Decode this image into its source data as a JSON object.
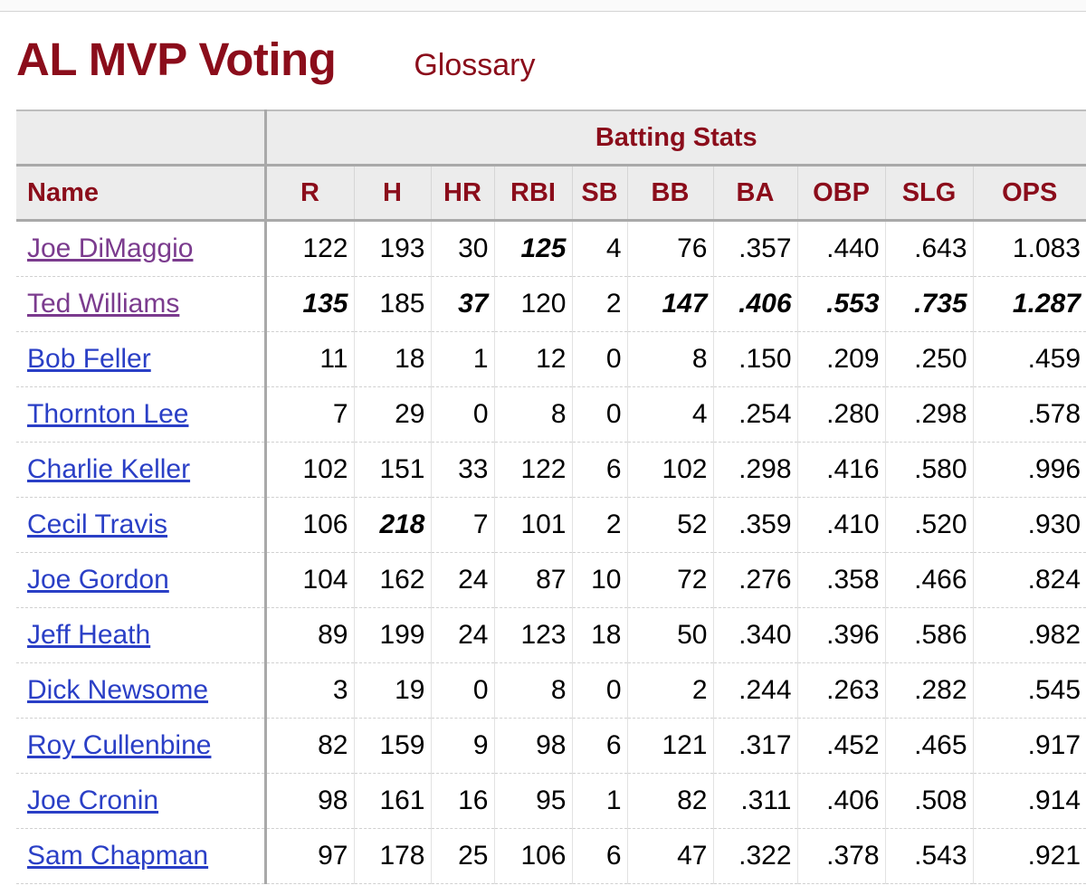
{
  "header": {
    "title": "AL MVP Voting",
    "glossary_label": "Glossary"
  },
  "table": {
    "group_header": "Batting Stats",
    "columns": [
      "Name",
      "R",
      "H",
      "HR",
      "RBI",
      "SB",
      "BB",
      "BA",
      "OBP",
      "SLG",
      "OPS"
    ],
    "rows": [
      {
        "name": "Joe DiMaggio",
        "visited": true,
        "values": [
          "122",
          "193",
          "30",
          "125",
          "4",
          "76",
          ".357",
          ".440",
          ".643",
          "1.083"
        ],
        "leaders": [
          3
        ]
      },
      {
        "name": "Ted Williams",
        "visited": true,
        "values": [
          "135",
          "185",
          "37",
          "120",
          "2",
          "147",
          ".406",
          ".553",
          ".735",
          "1.287"
        ],
        "leaders": [
          0,
          2,
          5,
          6,
          7,
          8,
          9
        ]
      },
      {
        "name": "Bob Feller",
        "visited": false,
        "values": [
          "11",
          "18",
          "1",
          "12",
          "0",
          "8",
          ".150",
          ".209",
          ".250",
          ".459"
        ],
        "leaders": []
      },
      {
        "name": "Thornton Lee",
        "visited": false,
        "values": [
          "7",
          "29",
          "0",
          "8",
          "0",
          "4",
          ".254",
          ".280",
          ".298",
          ".578"
        ],
        "leaders": []
      },
      {
        "name": "Charlie Keller",
        "visited": false,
        "values": [
          "102",
          "151",
          "33",
          "122",
          "6",
          "102",
          ".298",
          ".416",
          ".580",
          ".996"
        ],
        "leaders": []
      },
      {
        "name": "Cecil Travis",
        "visited": false,
        "values": [
          "106",
          "218",
          "7",
          "101",
          "2",
          "52",
          ".359",
          ".410",
          ".520",
          ".930"
        ],
        "leaders": [
          1
        ]
      },
      {
        "name": "Joe Gordon",
        "visited": false,
        "values": [
          "104",
          "162",
          "24",
          "87",
          "10",
          "72",
          ".276",
          ".358",
          ".466",
          ".824"
        ],
        "leaders": []
      },
      {
        "name": "Jeff Heath",
        "visited": false,
        "values": [
          "89",
          "199",
          "24",
          "123",
          "18",
          "50",
          ".340",
          ".396",
          ".586",
          ".982"
        ],
        "leaders": []
      },
      {
        "name": "Dick Newsome",
        "visited": false,
        "values": [
          "3",
          "19",
          "0",
          "8",
          "0",
          "2",
          ".244",
          ".263",
          ".282",
          ".545"
        ],
        "leaders": []
      },
      {
        "name": "Roy Cullenbine",
        "visited": false,
        "values": [
          "82",
          "159",
          "9",
          "98",
          "6",
          "121",
          ".317",
          ".452",
          ".465",
          ".917"
        ],
        "leaders": []
      },
      {
        "name": "Joe Cronin",
        "visited": false,
        "values": [
          "98",
          "161",
          "16",
          "95",
          "1",
          "82",
          ".311",
          ".406",
          ".508",
          ".914"
        ],
        "leaders": []
      },
      {
        "name": "Sam Chapman",
        "visited": false,
        "values": [
          "97",
          "178",
          "25",
          "106",
          "6",
          "47",
          ".322",
          ".378",
          ".543",
          ".921"
        ],
        "leaders": []
      }
    ]
  },
  "colors": {
    "accent": "#8b0d1b",
    "link": "#2a3fc6",
    "link_visited": "#7b3b8e",
    "header_bg": "#ececec"
  }
}
